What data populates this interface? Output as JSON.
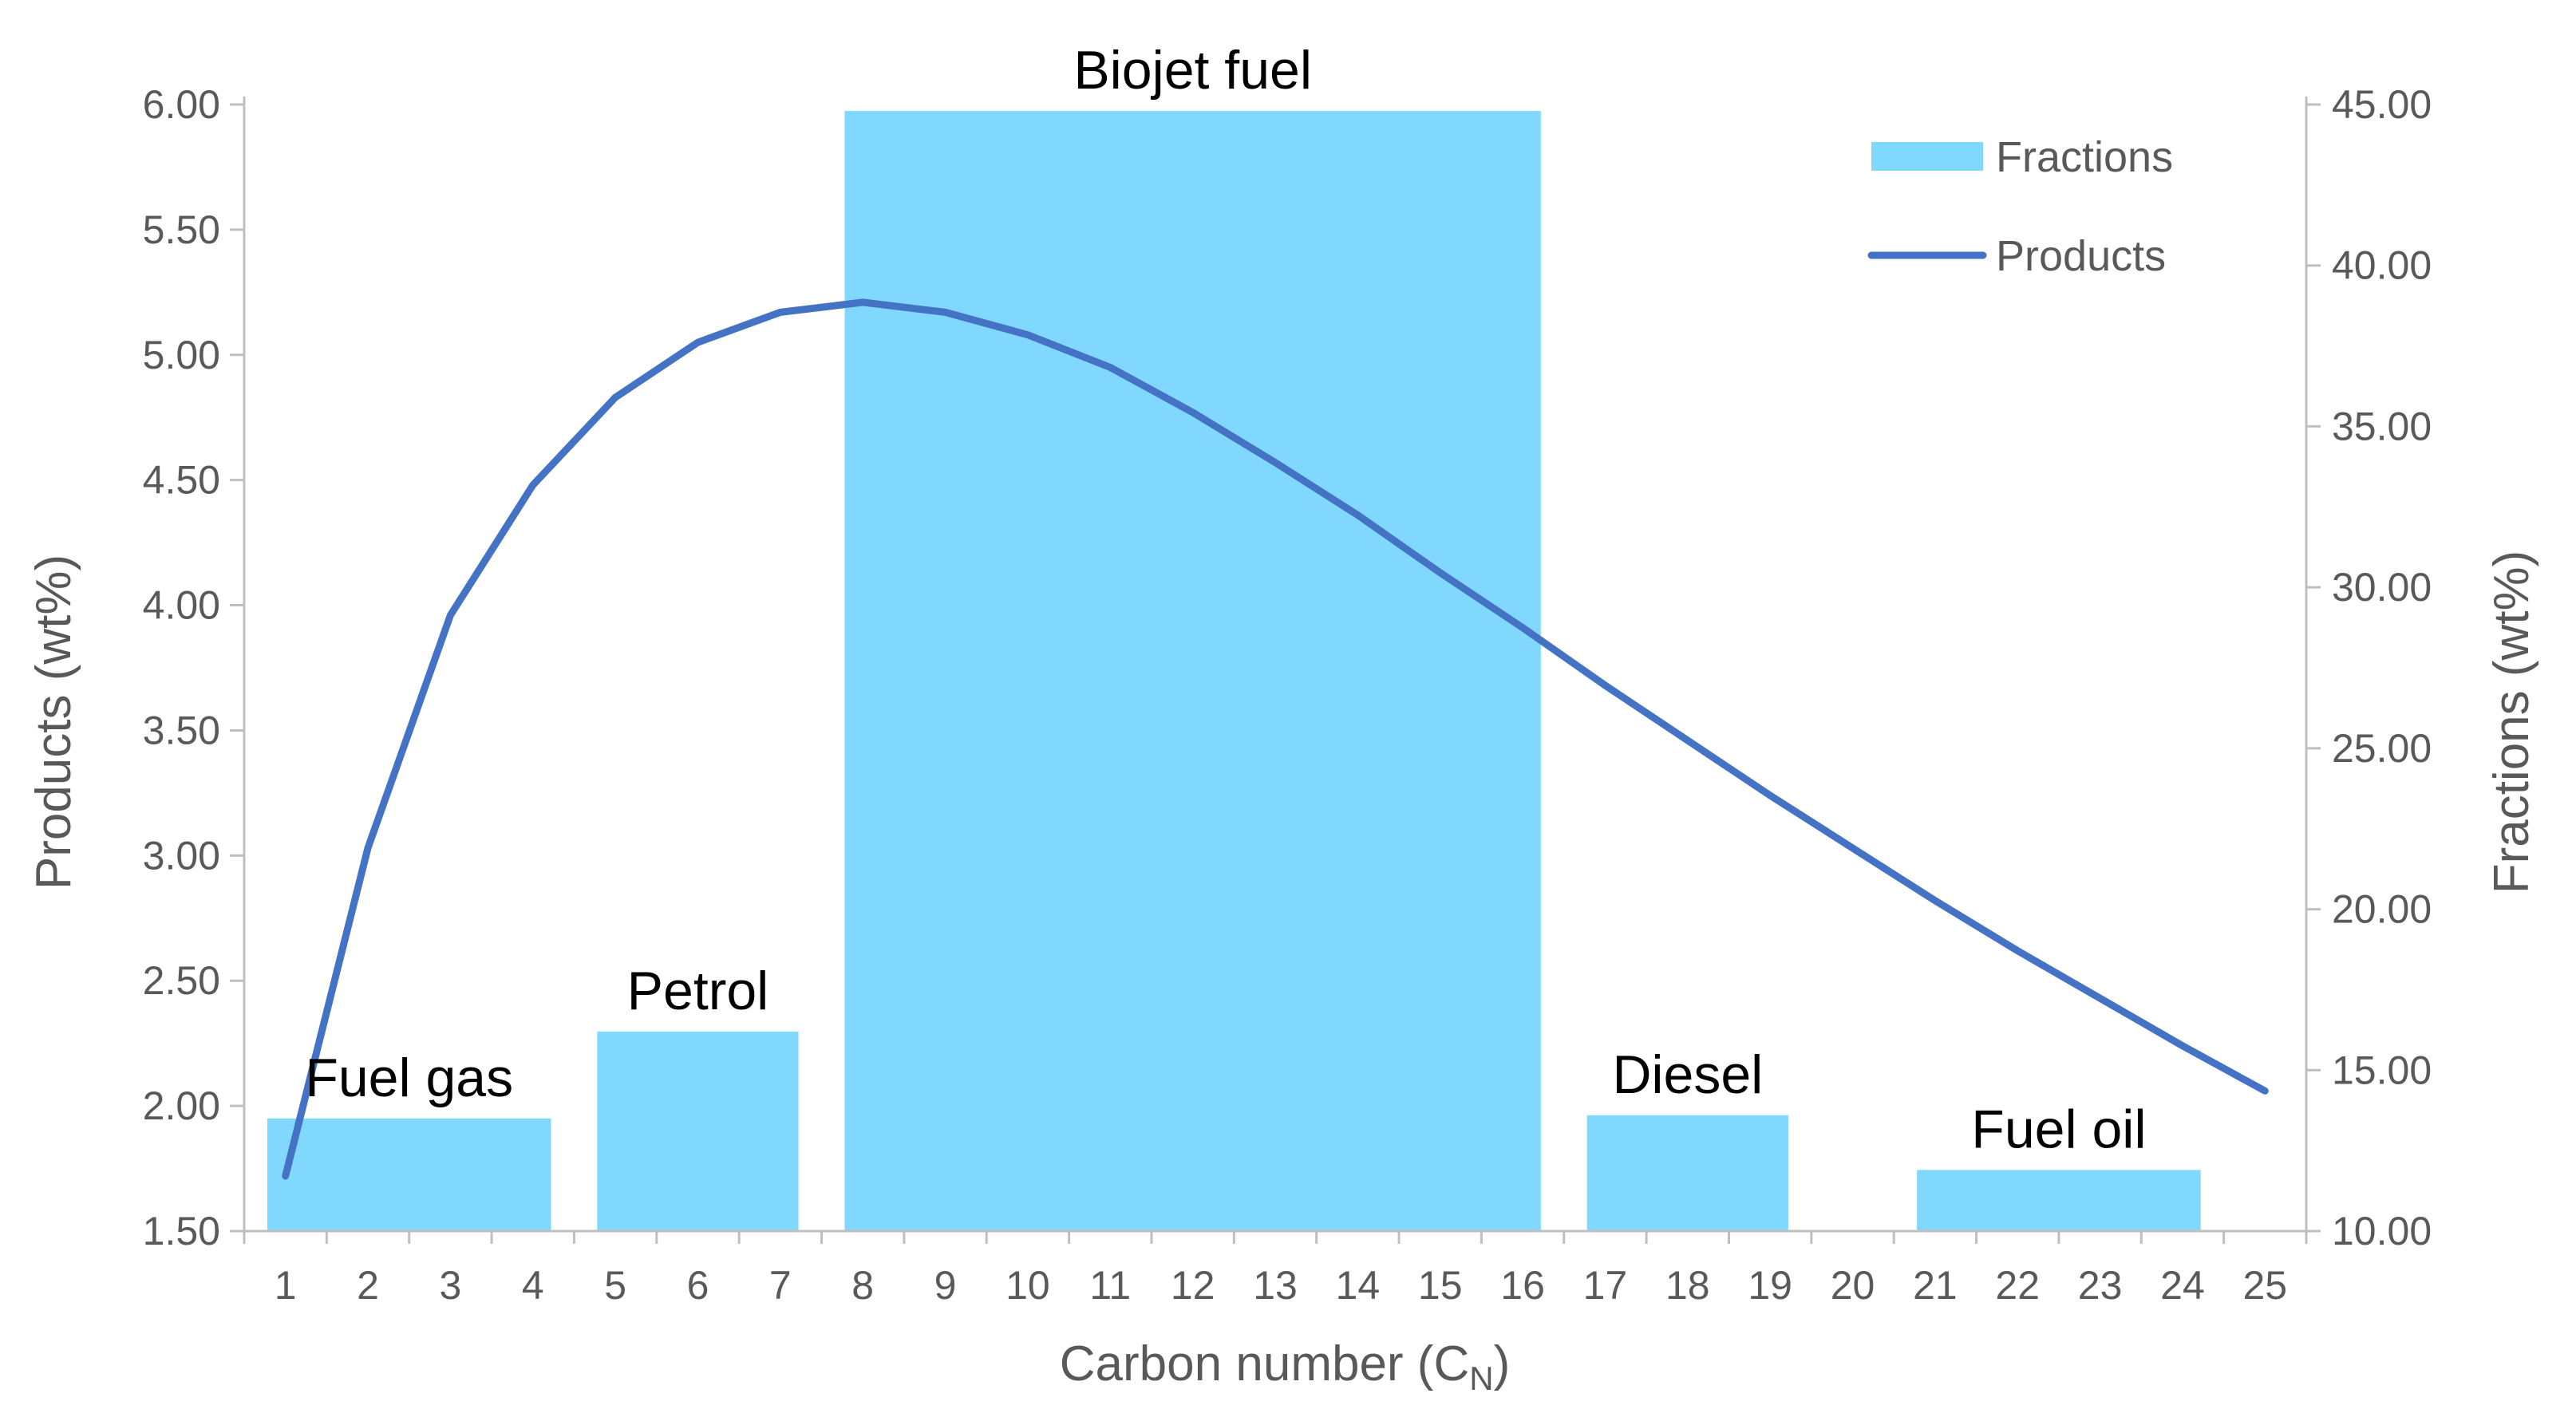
{
  "chart_data": {
    "type": "bar+line",
    "xlabel": "Carbon number (C",
    "xlabel_sub": "N",
    "xlabel_end": ")",
    "x_ticks": [
      "1",
      "2",
      "3",
      "4",
      "5",
      "6",
      "7",
      "8",
      "9",
      "10",
      "11",
      "12",
      "13",
      "14",
      "15",
      "16",
      "17",
      "18",
      "19",
      "20",
      "21",
      "22",
      "23",
      "24",
      "25"
    ],
    "y_left": {
      "label": "Products (wt%)",
      "lim": [
        1.5,
        6.0
      ],
      "ticks": [
        "1.50",
        "2.00",
        "2.50",
        "3.00",
        "3.50",
        "4.00",
        "4.50",
        "5.00",
        "5.50",
        "6.00"
      ]
    },
    "y_right": {
      "label": "Fractions (wt%)",
      "lim": [
        10,
        45
      ],
      "ticks": [
        "10.00",
        "15.00",
        "20.00",
        "25.00",
        "30.00",
        "35.00",
        "40.00",
        "45.00"
      ]
    },
    "legend": {
      "placement": "top-right",
      "items": [
        {
          "label": "Fractions",
          "kind": "bar"
        },
        {
          "label": "Products",
          "kind": "line"
        }
      ]
    },
    "fractions": [
      {
        "label": "Fuel gas",
        "from": 1,
        "to": 4,
        "value": 13.5
      },
      {
        "label": "Petrol",
        "from": 5,
        "to": 7,
        "value": 16.2
      },
      {
        "label": "Biojet fuel",
        "from": 8,
        "to": 16,
        "value": 44.8
      },
      {
        "label": "Diesel",
        "from": 17,
        "to": 19,
        "value": 13.6
      },
      {
        "label": "Fuel oil",
        "from": 21,
        "to": 24,
        "value": 11.9
      }
    ],
    "products": {
      "x": [
        1,
        2,
        3,
        4,
        5,
        6,
        7,
        8,
        9,
        10,
        11,
        12,
        13,
        14,
        15,
        16,
        17,
        18,
        19,
        20,
        21,
        22,
        23,
        24,
        25
      ],
      "y": [
        1.72,
        3.03,
        3.96,
        4.48,
        4.83,
        5.05,
        5.17,
        5.21,
        5.17,
        5.08,
        4.95,
        4.77,
        4.57,
        4.36,
        4.13,
        3.91,
        3.68,
        3.46,
        3.24,
        3.03,
        2.82,
        2.62,
        2.43,
        2.24,
        2.06
      ]
    },
    "colors": {
      "bar": "#80d8ff",
      "line": "#4472c4",
      "axis": "#bfbfbf",
      "text": "#595959"
    }
  }
}
